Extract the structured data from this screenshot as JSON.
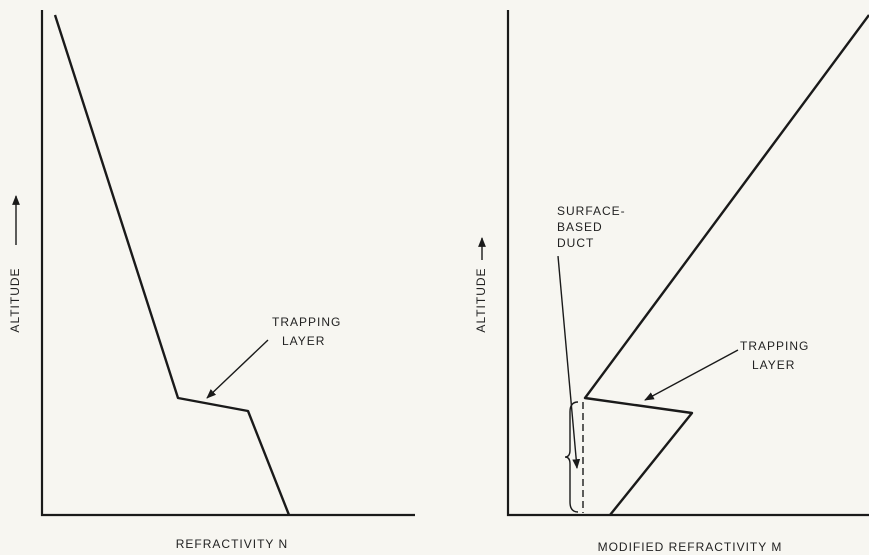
{
  "panels": [
    {
      "y_label": "ALTITUDE",
      "x_label": "REFRACTIVITY N",
      "annotations": [
        {
          "lines": [
            "TRAPPING",
            "LAYER"
          ]
        }
      ]
    },
    {
      "y_label": "ALTITUDE",
      "x_label": "MODIFIED REFRACTIVITY M",
      "annotations": [
        {
          "lines": [
            "SURFACE-",
            "BASED",
            "DUCT"
          ]
        },
        {
          "lines": [
            "TRAPPING",
            "LAYER"
          ]
        }
      ]
    }
  ]
}
